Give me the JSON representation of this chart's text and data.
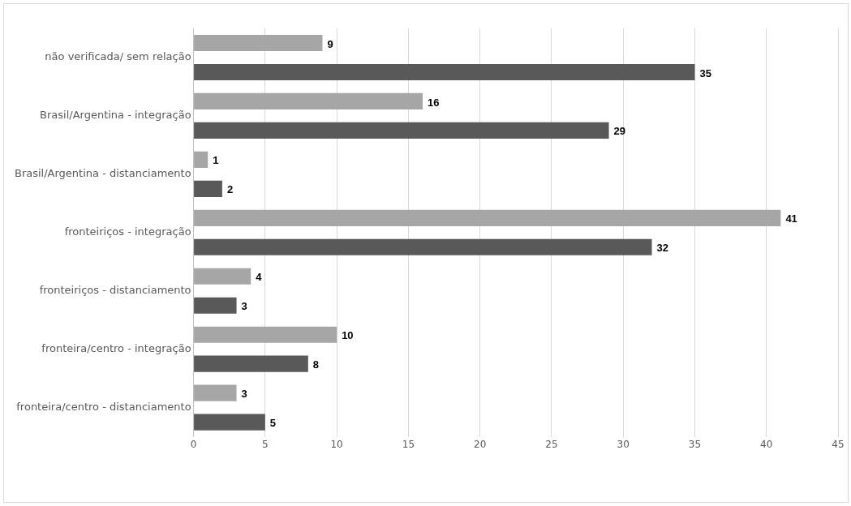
{
  "chart_data": {
    "type": "bar",
    "orientation": "horizontal",
    "categories": [
      "não verificada/ sem relação",
      "Brasil/Argentina - integração",
      "Brasil/Argentina - distanciamento",
      "fronteiriços - integração",
      "fronteiriços - distanciamento",
      "fronteira/centro - integração",
      "fronteira/centro - distanciamento"
    ],
    "series": [
      {
        "color": "#a6a6a6",
        "values": [
          9,
          16,
          1,
          41,
          4,
          10,
          3
        ]
      },
      {
        "color": "#595959",
        "values": [
          35,
          29,
          2,
          32,
          3,
          8,
          5
        ]
      }
    ],
    "xlim": [
      0,
      45
    ],
    "xticks": [
      0,
      5,
      10,
      15,
      20,
      25,
      30,
      35,
      40,
      45
    ],
    "grid": "x",
    "data_labels": true
  }
}
